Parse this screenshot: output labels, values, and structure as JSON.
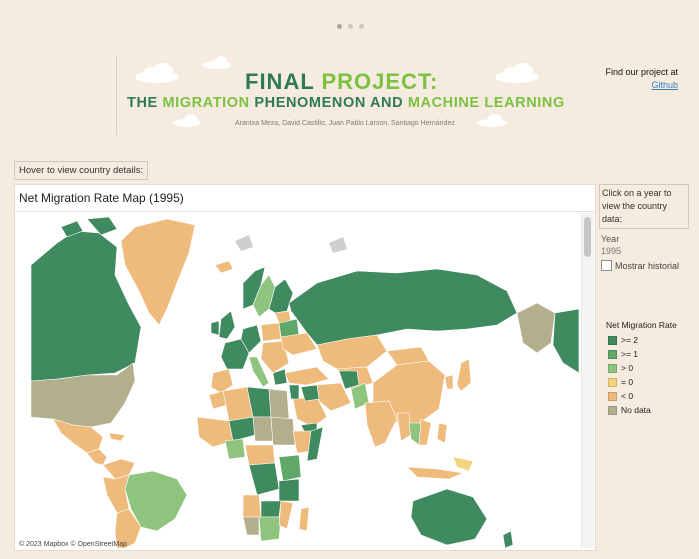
{
  "header": {
    "title_part1": "FINAL ",
    "title_part2": "PROJECT:",
    "subtitle_part1": "THE ",
    "subtitle_part2": "MIGRATION",
    "subtitle_part3": " PHENOMENON AND ",
    "subtitle_part4": "MACHINE LEARNING",
    "authors": "Arantxa Meza, David Castillo, Juan Pablo Larson, Santiago Hernández"
  },
  "links": {
    "find_text": "Find our project at",
    "github_label": "Github"
  },
  "hover_hint": "Hover to view country details:",
  "map": {
    "title": "Net Migration Rate Map (1995)",
    "attribution": "© 2023 Mapbox © OpenStreetMap"
  },
  "sidebar": {
    "click_hint": "Click on a year to view the country data:",
    "year_label": "Year",
    "year_value": "1995",
    "history_label": "Mostrar historial"
  },
  "legend": {
    "title": "Net Migration Rate",
    "items": [
      {
        "label": ">= 2",
        "color": "#3f8a5e"
      },
      {
        "label": ">= 1",
        "color": "#5fa86a"
      },
      {
        "label": "> 0",
        "color": "#8fc47e"
      },
      {
        "label": "= 0",
        "color": "#f3d57e"
      },
      {
        "label": "< 0",
        "color": "#efbb7c"
      },
      {
        "label": "No data",
        "color": "#b3ae8c"
      }
    ]
  },
  "colors": {
    "background": "#f5ebde",
    "title_green": "#2f7a52",
    "title_accent": "#7cc142"
  }
}
